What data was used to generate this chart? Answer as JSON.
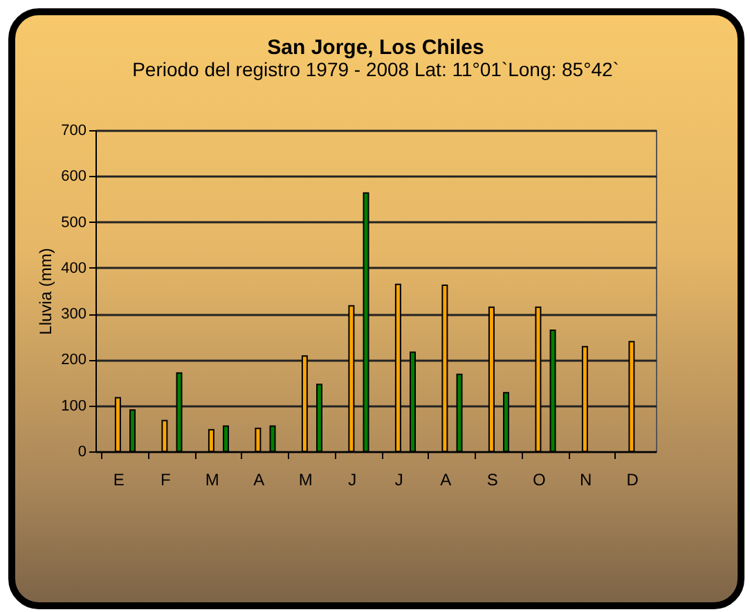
{
  "chart_data": {
    "type": "bar",
    "title": "San Jorge, Los Chiles",
    "subtitle": "Periodo del registro 1979 - 2008\nLat: 11°01`Long: 85°42`",
    "ylabel": "Lluvia (mm)",
    "categories": [
      "E",
      "F",
      "M",
      "A",
      "M",
      "J",
      "J",
      "A",
      "S",
      "O",
      "N",
      "D"
    ],
    "series": [
      {
        "color": "#ffa500",
        "values": [
          117,
          67,
          47,
          50,
          208,
          317,
          364,
          362,
          314,
          314,
          228,
          239
        ]
      },
      {
        "color": "#008000",
        "values": [
          90,
          171,
          55,
          55,
          146,
          563,
          216,
          168,
          128,
          264,
          null,
          null
        ]
      }
    ],
    "ylim": [
      0,
      700
    ],
    "yticks": [
      0,
      100,
      200,
      300,
      400,
      500,
      600,
      700
    ],
    "grid": "y",
    "legend": false
  }
}
